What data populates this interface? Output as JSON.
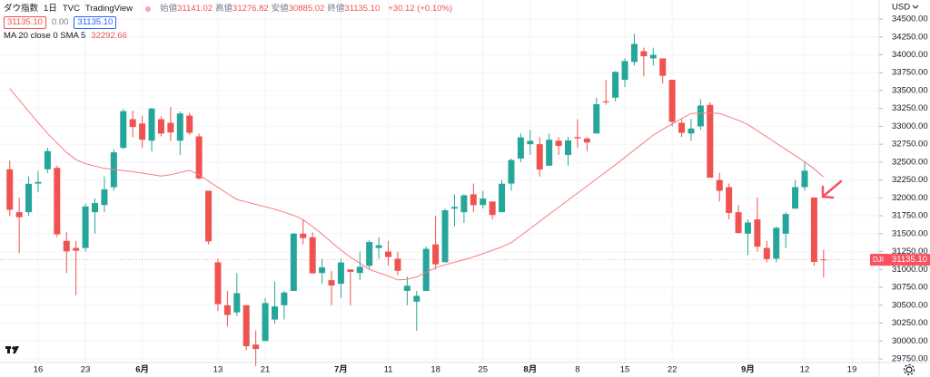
{
  "header": {
    "symbol": "ダウ指数",
    "interval": "1日",
    "source": "TVC",
    "brand": "TradingView",
    "ohlc": [
      {
        "label": "始値",
        "value": "31141.02"
      },
      {
        "label": "高値",
        "value": "31276.82"
      },
      {
        "label": "安値",
        "value": "30885.02"
      },
      {
        "label": "終値",
        "value": "31135.10"
      }
    ],
    "change": "+30.12 (+0.10%)",
    "badges": [
      "31135.10",
      "0.00",
      "31135.10"
    ]
  },
  "indicator": {
    "name": "MA 20 close 0 SMA 5",
    "value": "32292.66"
  },
  "currency": "USD",
  "price_tag": {
    "symbol": "DJI",
    "value": 31135.1,
    "label": "31135.10",
    "color": "#f7525f"
  },
  "chart_data": {
    "type": "candlestick",
    "up_color": "#26a69a",
    "down_color": "#ef5350",
    "grid": true,
    "open": [
      32400,
      31800,
      31800,
      32200,
      32400,
      32420,
      31400,
      31300,
      31300,
      31800,
      31900,
      32150,
      32700,
      33100,
      33040,
      32800,
      33100,
      33050,
      32800,
      33150,
      32860,
      32100,
      31100,
      30500,
      30400,
      30500,
      29950,
      30000,
      30300,
      30500,
      30700,
      31500,
      31450,
      30950,
      30850,
      30800,
      31000,
      30950,
      31050,
      31300,
      31250,
      31150,
      30700,
      30550,
      30700,
      31350,
      31100,
      31850,
      31800,
      32050,
      31900,
      31950,
      31800,
      32200,
      32550,
      32750,
      32750,
      32450,
      32800,
      32600,
      32850,
      32830,
      32900,
      33350,
      33400,
      33650,
      33900,
      34050,
      33950,
      33950,
      33650,
      33050,
      32900,
      33000,
      33300,
      32250,
      32150,
      31800,
      31500,
      31700,
      31300,
      31150,
      31500,
      31850,
      32150,
      32006,
      31141.02
    ],
    "high": [
      32520,
      32000,
      32300,
      32380,
      32700,
      32450,
      31520,
      31400,
      31920,
      31990,
      32300,
      32680,
      33240,
      33220,
      33150,
      33260,
      33140,
      33270,
      33210,
      33190,
      32900,
      32100,
      31150,
      30700,
      30950,
      30500,
      30150,
      30600,
      30830,
      30700,
      31510,
      31700,
      31520,
      31150,
      30980,
      31150,
      31000,
      31250,
      31410,
      31450,
      31400,
      31250,
      30900,
      30700,
      31320,
      31750,
      31850,
      32050,
      32050,
      32200,
      32100,
      31950,
      32250,
      32550,
      32900,
      32950,
      32850,
      32900,
      32850,
      32850,
      33100,
      32850,
      33400,
      33650,
      33770,
      33950,
      34290,
      34100,
      34100,
      33950,
      33650,
      33100,
      33100,
      33380,
      33340,
      32350,
      32200,
      31900,
      31700,
      32000,
      31400,
      31600,
      31800,
      32250,
      32500,
      32006,
      31276.82
    ],
    "low": [
      31750,
      31230,
      31750,
      32080,
      32350,
      31450,
      30950,
      30640,
      31250,
      31500,
      31800,
      32100,
      32680,
      32850,
      32700,
      32650,
      32860,
      32800,
      32600,
      32880,
      32260,
      31350,
      30420,
      30200,
      30350,
      29870,
      29650,
      30000,
      30240,
      30300,
      30700,
      31350,
      30940,
      30800,
      30500,
      30600,
      30500,
      30850,
      31000,
      31150,
      31050,
      30920,
      30500,
      30143,
      30700,
      31000,
      31100,
      31600,
      31650,
      31800,
      31850,
      31700,
      31800,
      32100,
      32500,
      32600,
      32300,
      32450,
      32600,
      32450,
      32700,
      32650,
      32900,
      33300,
      33350,
      33550,
      33850,
      33700,
      33850,
      33600,
      33000,
      32850,
      32800,
      32950,
      32280,
      31950,
      31700,
      31500,
      31200,
      31250,
      31100,
      31100,
      31300,
      31850,
      32100,
      31050,
      30885.02
    ],
    "close": [
      31834,
      31730,
      32197,
      32223,
      32654,
      31490,
      31253,
      31262,
      31880,
      31928,
      32120,
      32637,
      33212,
      32990,
      32813,
      33248,
      32899,
      32915,
      33180,
      32910,
      32272,
      31392,
      30516,
      30364,
      30668,
      29927,
      29888,
      30530,
      30483,
      30677,
      31500,
      31438,
      30946,
      31029,
      30775,
      31097,
      30967,
      31037,
      31384,
      31338,
      31173,
      30981,
      30772,
      30630,
      31288,
      31072,
      31827,
      31874,
      32036,
      31899,
      31990,
      31761,
      32198,
      32529,
      32845,
      32798,
      32396,
      32813,
      32727,
      32803,
      32832,
      32774,
      33309,
      33336,
      33761,
      33913,
      34152,
      33980,
      33999,
      33706,
      33063,
      32909,
      32969,
      33291,
      32283,
      32099,
      31790,
      31510,
      31656,
      31318,
      31145,
      31581,
      31775,
      32151,
      32381,
      31105,
      31135.1
    ],
    "series": [
      {
        "name": "MA 20 close 0 SMA 5",
        "color": "#f77c80",
        "values": [
          33527,
          33369,
          33211,
          33052,
          32900,
          32768,
          32636,
          32534,
          32480,
          32444,
          32413,
          32396,
          32381,
          32366,
          32347,
          32327,
          32305,
          32325,
          32355,
          32386,
          32320,
          32235,
          32147,
          32062,
          31978,
          31944,
          31910,
          31876,
          31841,
          31799,
          31757,
          31697,
          31598,
          31494,
          31382,
          31271,
          31173,
          31087,
          31000,
          30953,
          30908,
          30853,
          30864,
          30895,
          30958,
          31025,
          31064,
          31100,
          31137,
          31175,
          31221,
          31268,
          31315,
          31375,
          31473,
          31573,
          31672,
          31771,
          31870,
          31968,
          32067,
          32166,
          32265,
          32365,
          32463,
          32566,
          32670,
          32774,
          32878,
          32958,
          33033,
          33108,
          33180,
          33184,
          33187,
          33182,
          33134,
          33084,
          33025,
          32938,
          32852,
          32765,
          32678,
          32591,
          32504,
          32408,
          32292.66
        ]
      }
    ],
    "xlim": [
      -1.03,
      91.87
    ],
    "xticks": [
      {
        "value": 3,
        "label": "16"
      },
      {
        "value": 8,
        "label": "23"
      },
      {
        "value": 14,
        "label": "6月"
      },
      {
        "value": 22,
        "label": "13"
      },
      {
        "value": 27,
        "label": "21"
      },
      {
        "value": 35,
        "label": "7月"
      },
      {
        "value": 40,
        "label": "11"
      },
      {
        "value": 45,
        "label": "18"
      },
      {
        "value": 50,
        "label": "25"
      },
      {
        "value": 55,
        "label": "8月"
      },
      {
        "value": 60,
        "label": "8"
      },
      {
        "value": 65,
        "label": "15"
      },
      {
        "value": 70,
        "label": "22"
      },
      {
        "value": 78,
        "label": "9月"
      },
      {
        "value": 84,
        "label": "12"
      },
      {
        "value": 89,
        "label": "19"
      }
    ],
    "ylim": [
      29699.3,
      34766
    ],
    "yticks": [
      {
        "value": 29750,
        "label": "29750.00"
      },
      {
        "value": 30000,
        "label": "30000.00"
      },
      {
        "value": 30250,
        "label": "30250.00"
      },
      {
        "value": 30500,
        "label": "30500.00"
      },
      {
        "value": 30750,
        "label": "30750.00"
      },
      {
        "value": 31000,
        "label": "31000.00"
      },
      {
        "value": 31250,
        "label": "31250.00"
      },
      {
        "value": 31500,
        "label": "31500.00"
      },
      {
        "value": 31750,
        "label": "31750.00"
      },
      {
        "value": 32000,
        "label": "32000.00"
      },
      {
        "value": 32250,
        "label": "32250.00"
      },
      {
        "value": 32500,
        "label": "32500.00"
      },
      {
        "value": 32750,
        "label": "32750.00"
      },
      {
        "value": 33000,
        "label": "33000.00"
      },
      {
        "value": 33250,
        "label": "33250.00"
      },
      {
        "value": 33500,
        "label": "33500.00"
      },
      {
        "value": 33750,
        "label": "33750.00"
      },
      {
        "value": 34000,
        "label": "34000.00"
      },
      {
        "value": 34250,
        "label": "34250.00"
      },
      {
        "value": 34500,
        "label": "34500.00"
      }
    ]
  }
}
